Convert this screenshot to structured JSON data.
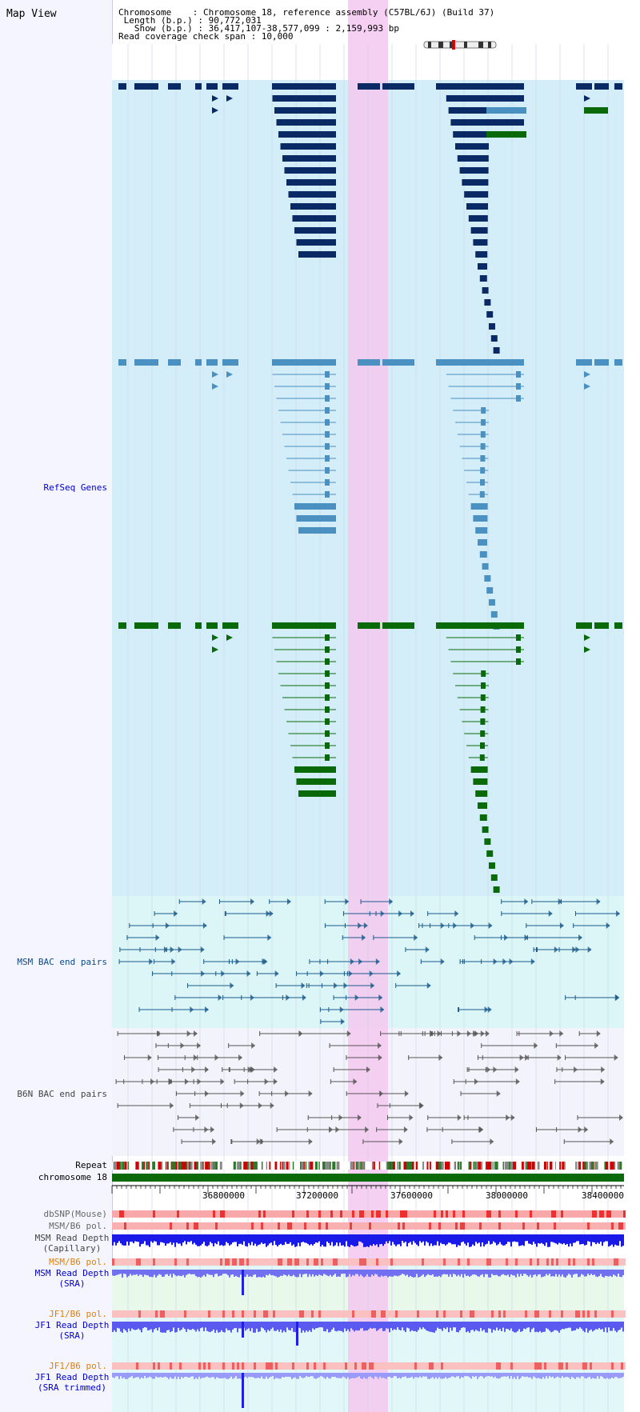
{
  "title": "Map View",
  "header": {
    "chromosome_line": "Chromosome    : Chromosome 18, reference assembly (C57BL/6J) (Build 37)",
    "length_line": " Length (b.p.) : 90,772,031",
    "show_line": "   Show (b.p.) : 36,417,107-38,577,099 : 2,159,993 bp",
    "coverage_line": "Read coverage check span : 10,000"
  },
  "tracks": {
    "refseq": "RefSeq Genes",
    "msm_bac": "MSM BAC end pairs",
    "b6n_bac": "B6N BAC end pairs",
    "repeat": "Repeat",
    "chromosome": "chromosome 18",
    "dbsnp": "dbSNP(Mouse)",
    "msm_pol": "MSM/B6 pol.",
    "msm_depth_cap_1": "MSM Read Depth",
    "msm_depth_cap_2": "(Capillary)",
    "msm_pol2": "MSM/B6 pol.",
    "msm_depth_sra_1": "MSM Read Depth",
    "msm_depth_sra_2": "(SRA)",
    "jf1_pol": "JF1/B6 pol.",
    "jf1_depth_sra_1": "JF1 Read Depth",
    "jf1_depth_sra_2": "(SRA)",
    "jf1_pol2": "JF1/B6 pol.",
    "jf1_depth_trim_1": "JF1 Read Depth",
    "jf1_depth_trim_2": "(SRA trimmed)"
  },
  "axis": {
    "ticks": [
      "36800000",
      "37200000",
      "37600000",
      "38000000",
      "38400000"
    ]
  },
  "colors": {
    "refseq_dark": "#0a2a66",
    "refseq_mid": "#4a90c0",
    "refseq_green": "#0a6a0a",
    "highlight": "#f5c8f0",
    "gene_bg": "#d4eef9",
    "bac_bg": "#dcf6f8",
    "msm_label": "#0000cc",
    "pol_label": "#e08000",
    "chrom_bar": "#0a6a0a"
  }
}
